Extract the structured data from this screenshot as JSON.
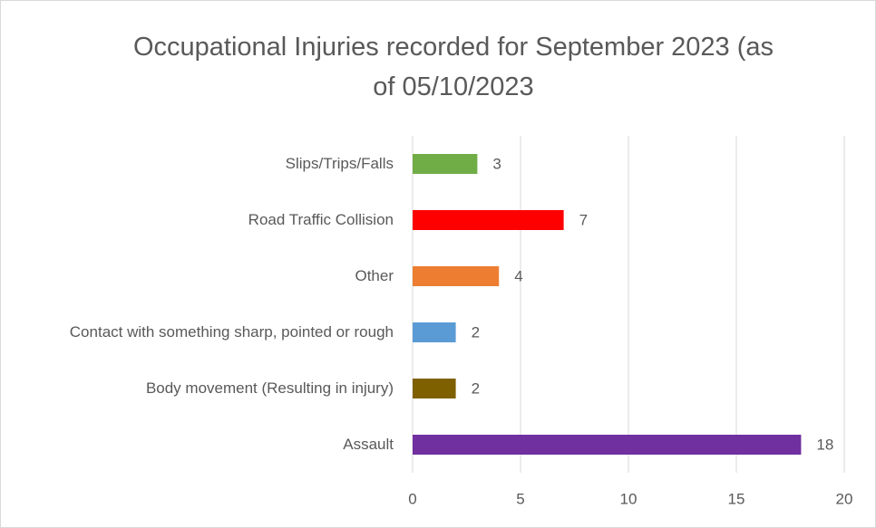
{
  "chart_data": {
    "type": "bar",
    "orientation": "horizontal",
    "title": "Occupational Injuries recorded for September 2023 (as of 05/10/2023",
    "categories": [
      "Slips/Trips/Falls",
      "Road Traffic Collision",
      "Other",
      "Contact with something sharp, pointed or rough",
      "Body movement (Resulting in injury)",
      "Assault"
    ],
    "values": [
      3,
      7,
      4,
      2,
      2,
      18
    ],
    "colors": [
      "#70ad47",
      "#ff0000",
      "#ed7d31",
      "#5b9bd5",
      "#7f6000",
      "#7030a0"
    ],
    "xlim": [
      0,
      20
    ],
    "xticks": [
      0,
      5,
      10,
      15,
      20
    ],
    "grid": true
  }
}
